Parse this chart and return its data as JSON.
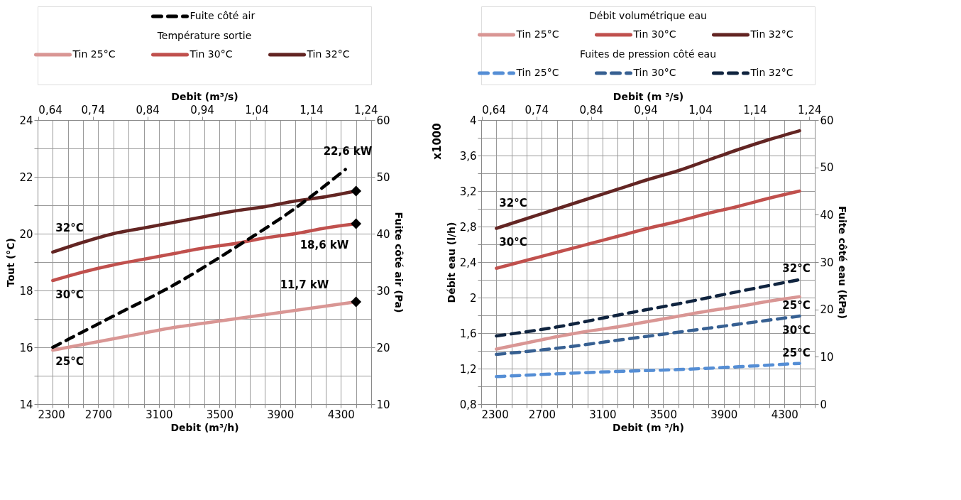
{
  "chart_data": [
    {
      "type": "line",
      "xlabel": "Debit (m³/h)",
      "x2label": "Debit (m³/s)",
      "ylabel": "Tout (°C)",
      "y2label": "Fuite côté air (Pa)",
      "legend_title": "Température sortie",
      "legend": "top",
      "grid": true,
      "xlim": [
        2300,
        4500
      ],
      "xticks": [
        2300,
        {
          "value": 2400,
          "label": null
        },
        {
          "value": 2500,
          "label": null
        },
        {
          "value": 2600,
          "label": null
        },
        2700,
        {
          "value": 2800,
          "label": null
        },
        {
          "value": 2900,
          "label": null
        },
        {
          "value": 3000,
          "label": null
        },
        3100,
        {
          "value": 3200,
          "label": null
        },
        {
          "value": 3300,
          "label": null
        },
        {
          "value": 3400,
          "label": null
        },
        3500,
        {
          "value": 3600,
          "label": null
        },
        {
          "value": 3700,
          "label": null
        },
        {
          "value": 3800,
          "label": null
        },
        3900,
        {
          "value": 4000,
          "label": null
        },
        {
          "value": 4100,
          "label": null
        },
        {
          "value": 4200,
          "label": null
        },
        4300,
        {
          "value": 4400,
          "label": null
        },
        {
          "value": 4500,
          "label": null
        }
      ],
      "x2lim": [
        0.6389,
        1.25
      ],
      "x2ticks": [
        {
          "value": 0.64,
          "label": "0,64"
        },
        {
          "value": 0.74,
          "label": "0,74"
        },
        {
          "value": 0.84,
          "label": "0,84"
        },
        {
          "value": 0.94,
          "label": "0,94"
        },
        {
          "value": 1.04,
          "label": "1,04"
        },
        {
          "value": 1.14,
          "label": "1,14"
        },
        {
          "value": 1.24,
          "label": "1,24"
        }
      ],
      "ylim": [
        14,
        24
      ],
      "yticks": [
        14,
        {
          "value": 15,
          "label": null
        },
        16,
        {
          "value": 17,
          "label": null
        },
        18,
        {
          "value": 19,
          "label": null
        },
        20,
        {
          "value": 21,
          "label": null
        },
        22,
        {
          "value": 23,
          "label": null
        },
        24
      ],
      "y2lim": [
        10,
        60
      ],
      "y2ticks": [
        10,
        20,
        30,
        40,
        50,
        60
      ],
      "x": [
        2400,
        2600,
        2800,
        3000,
        3200,
        3400,
        3600,
        3800,
        4000,
        4200,
        4400
      ],
      "series": [
        {
          "name": "Fuite côté air",
          "axis": "y2",
          "line_style": "dashed",
          "color": "#000000",
          "x": [
            2400,
            2800,
            3200,
            3600,
            4000,
            4330
          ],
          "values": [
            20,
            25.5,
            31,
            37.5,
            44.5,
            51.3
          ]
        },
        {
          "name": "Tin 25°C",
          "line_style": "solid",
          "color": "#d99694",
          "values": [
            15.9,
            16.1,
            16.3,
            16.5,
            16.7,
            16.85,
            17.0,
            17.15,
            17.3,
            17.45,
            17.6
          ]
        },
        {
          "name": "Tin 30°C",
          "line_style": "solid",
          "color": "#c0504d",
          "values": [
            18.35,
            18.65,
            18.9,
            19.1,
            19.3,
            19.5,
            19.65,
            19.85,
            20.0,
            20.2,
            20.35
          ]
        },
        {
          "name": "Tin 32°C",
          "line_style": "solid",
          "color": "#632523",
          "values": [
            19.35,
            19.7,
            20.0,
            20.2,
            20.4,
            20.6,
            20.8,
            20.95,
            21.15,
            21.3,
            21.5
          ]
        },
        {
          "type": "scatter",
          "marker": "diamond",
          "color": "#000000",
          "x": [
            4400,
            4400,
            4400
          ],
          "values": [
            21.5,
            20.35,
            17.6
          ]
        }
      ],
      "annotations": [
        "32°C",
        "30°C",
        "25°C",
        "22,6 kW",
        "18,6 kW",
        "11,7 kW"
      ]
    },
    {
      "type": "line",
      "xlabel": "Debit (m ³/h)",
      "x2label": "Debit (m ³/s)",
      "ylabel": "Débit eau (l/h)",
      "y2label": "Fuite côté eau (kPa)",
      "legend_title": [
        "Débit volumétrique eau",
        "Fuites de pression côté eau"
      ],
      "legend": "top",
      "grid": true,
      "xlim": [
        2300,
        4500
      ],
      "xticks": [
        2300,
        {
          "value": 2400,
          "label": null
        },
        {
          "value": 2500,
          "label": null
        },
        {
          "value": 2600,
          "label": null
        },
        2700,
        {
          "value": 2800,
          "label": null
        },
        {
          "value": 2900,
          "label": null
        },
        {
          "value": 3000,
          "label": null
        },
        3100,
        {
          "value": 3200,
          "label": null
        },
        {
          "value": 3300,
          "label": null
        },
        {
          "value": 3400,
          "label": null
        },
        3500,
        {
          "value": 3600,
          "label": null
        },
        {
          "value": 3700,
          "label": null
        },
        {
          "value": 3800,
          "label": null
        },
        3900,
        {
          "value": 4000,
          "label": null
        },
        {
          "value": 4100,
          "label": null
        },
        {
          "value": 4200,
          "label": null
        },
        4300,
        {
          "value": 4400,
          "label": null
        },
        {
          "value": 4500,
          "label": null
        }
      ],
      "x2lim": [
        0.6389,
        1.25
      ],
      "x2ticks": [
        {
          "value": 0.64,
          "label": "0,64"
        },
        {
          "value": 0.74,
          "label": "0,74"
        },
        {
          "value": 0.84,
          "label": "0,84"
        },
        {
          "value": 0.94,
          "label": "0,94"
        },
        {
          "value": 1.04,
          "label": "1,04"
        },
        {
          "value": 1.14,
          "label": "1,14"
        },
        {
          "value": 1.24,
          "label": "1,24"
        }
      ],
      "ylim": [
        0.8,
        4
      ],
      "yticks": [
        {
          "value": 0.8,
          "label": "0,8"
        },
        {
          "value": 1.0,
          "label": null
        },
        {
          "value": 1.2,
          "label": "1,2"
        },
        {
          "value": 1.4,
          "label": null
        },
        {
          "value": 1.6,
          "label": "1,6"
        },
        {
          "value": 1.8,
          "label": null
        },
        2,
        {
          "value": 2.2,
          "label": null
        },
        {
          "value": 2.4,
          "label": "2,4"
        },
        {
          "value": 2.6,
          "label": null
        },
        {
          "value": 2.8,
          "label": "2,8"
        },
        {
          "value": 3.0,
          "label": null
        },
        {
          "value": 3.2,
          "label": "3,2"
        },
        {
          "value": 3.4,
          "label": null
        },
        {
          "value": 3.6,
          "label": "3,6"
        },
        {
          "value": 3.8,
          "label": null
        },
        4
      ],
      "y2lim": [
        0,
        60
      ],
      "y2ticks": [
        0,
        10,
        20,
        30,
        40,
        50,
        60
      ],
      "x": [
        2400,
        2600,
        2800,
        3000,
        3200,
        3400,
        3600,
        3800,
        4000,
        4200,
        4400
      ],
      "series": [
        {
          "name": "Tin 25°C",
          "line_style": "solid",
          "color": "#d99694",
          "values": [
            1.42,
            1.49,
            1.56,
            1.62,
            1.67,
            1.73,
            1.79,
            1.85,
            1.9,
            1.96,
            2.01
          ]
        },
        {
          "name": "Tin 30°C",
          "line_style": "solid",
          "color": "#c0504d",
          "values": [
            2.33,
            2.42,
            2.51,
            2.6,
            2.69,
            2.78,
            2.86,
            2.95,
            3.03,
            3.12,
            3.2
          ]
        },
        {
          "name": "Tin 32°C",
          "line_style": "solid",
          "color": "#632523",
          "values": [
            2.78,
            2.89,
            3.0,
            3.11,
            3.22,
            3.33,
            3.43,
            3.55,
            3.67,
            3.78,
            3.88
          ]
        },
        {
          "name": "Tin 25°C",
          "axis": "y2",
          "line_style": "dashed",
          "color": "#558ed5",
          "x": [
            2400,
            2800,
            3200,
            3600,
            4000,
            4400
          ],
          "values": [
            5.8,
            6.4,
            6.9,
            7.3,
            7.9,
            8.6
          ]
        },
        {
          "name": "Tin 30°C",
          "axis": "y2",
          "line_style": "dashed",
          "color": "#376092",
          "x": [
            2400,
            2800,
            3200,
            3600,
            4000,
            4400
          ],
          "values": [
            10.5,
            11.8,
            13.5,
            15.2,
            16.9,
            18.6
          ]
        },
        {
          "name": "Tin 32°C",
          "axis": "y2",
          "line_style": "dashed",
          "color": "#10243f",
          "x": [
            2400,
            2800,
            3200,
            3600,
            4000,
            4400
          ],
          "values": [
            14.4,
            16.3,
            18.8,
            21.2,
            23.8,
            26.3
          ]
        }
      ],
      "annotations": [
        "x1000",
        "32°C",
        "30°C",
        "32°C",
        "25°C",
        "30°C",
        "25°C"
      ]
    }
  ]
}
